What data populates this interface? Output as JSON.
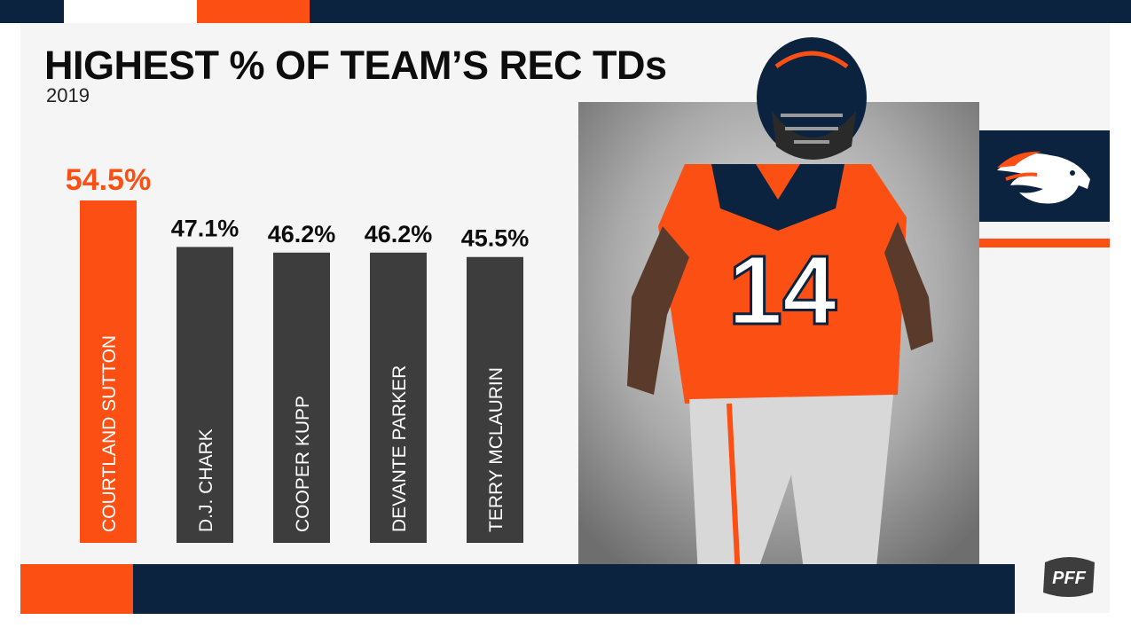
{
  "title": "HIGHEST % OF TEAM’S REC TDs",
  "subtitle": "2019",
  "brand": {
    "navy": "#0c2340",
    "orange": "#fb4f14",
    "bar_gray": "#3d3d3d",
    "logo_text": "PFF"
  },
  "icons": {
    "team_logo": "broncos-horse-icon",
    "player_photo": "player-photo"
  },
  "chart_data": {
    "type": "bar",
    "title": "HIGHEST % OF TEAM’S REC TDs",
    "subtitle": "2019",
    "xlabel": "",
    "ylabel": "",
    "ylim": [
      0,
      54.5
    ],
    "grid": false,
    "legend": "none",
    "categories": [
      "COURTLAND SUTTON",
      "D.J. CHARK",
      "COOPER KUPP",
      "DEVANTE PARKER",
      "TERRY MCLAURIN"
    ],
    "values": [
      54.5,
      47.1,
      46.2,
      46.2,
      45.5
    ],
    "value_labels": [
      "54.5%",
      "47.1%",
      "46.2%",
      "46.2%",
      "45.5%"
    ],
    "highlight_index": 0
  }
}
